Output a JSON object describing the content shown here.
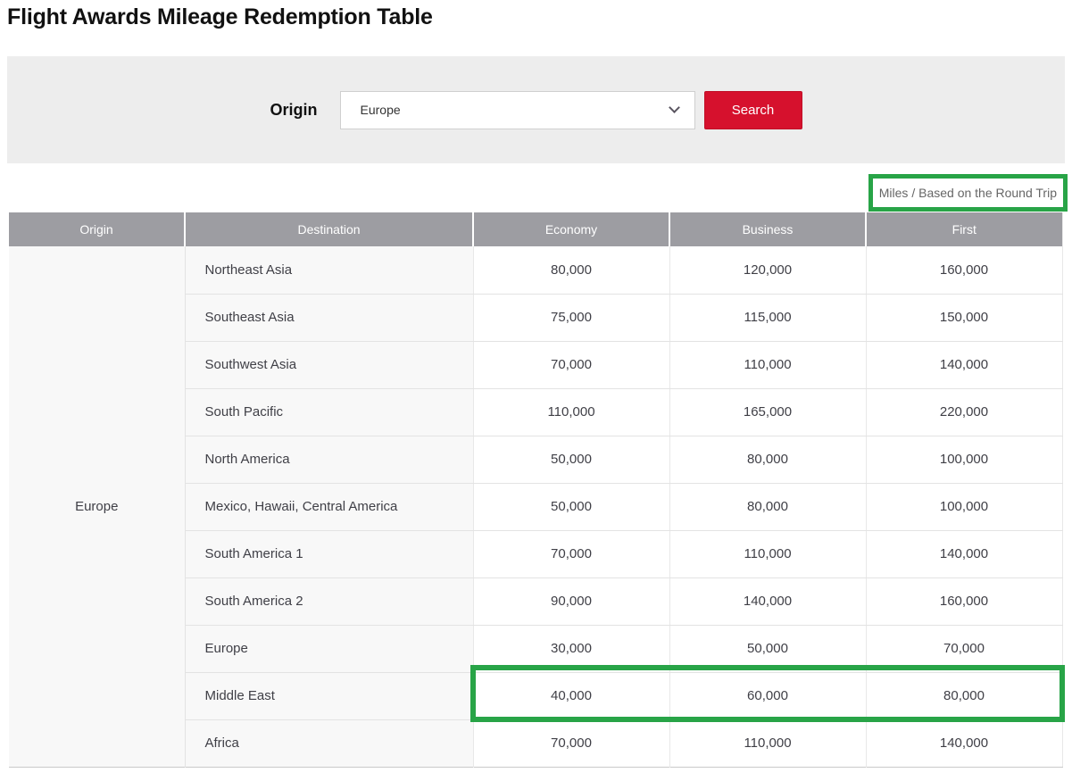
{
  "page": {
    "title": "Flight Awards Mileage Redemption Table"
  },
  "search": {
    "origin_label": "Origin",
    "origin_value": "Europe",
    "search_button_label": "Search"
  },
  "note": {
    "text": "Miles / Based on the Round Trip"
  },
  "table": {
    "columns": [
      "Origin",
      "Destination",
      "Economy",
      "Business",
      "First"
    ],
    "origin": "Europe",
    "rows": [
      {
        "destination": "Northeast Asia",
        "economy": "80,000",
        "business": "120,000",
        "first": "160,000"
      },
      {
        "destination": "Southeast Asia",
        "economy": "75,000",
        "business": "115,000",
        "first": "150,000"
      },
      {
        "destination": "Southwest Asia",
        "economy": "70,000",
        "business": "110,000",
        "first": "140,000"
      },
      {
        "destination": "South Pacific",
        "economy": "110,000",
        "business": "165,000",
        "first": "220,000"
      },
      {
        "destination": "North America",
        "economy": "50,000",
        "business": "80,000",
        "first": "100,000"
      },
      {
        "destination": "Mexico, Hawaii, Central America",
        "economy": "50,000",
        "business": "80,000",
        "first": "100,000"
      },
      {
        "destination": "South America 1",
        "economy": "70,000",
        "business": "110,000",
        "first": "140,000"
      },
      {
        "destination": "South America 2",
        "economy": "90,000",
        "business": "140,000",
        "first": "160,000"
      },
      {
        "destination": "Europe",
        "economy": "30,000",
        "business": "50,000",
        "first": "70,000"
      },
      {
        "destination": "Middle East",
        "economy": "40,000",
        "business": "60,000",
        "first": "80,000"
      },
      {
        "destination": "Africa",
        "economy": "70,000",
        "business": "110,000",
        "first": "140,000"
      }
    ],
    "highlighted_row": "Middle East"
  },
  "colors": {
    "accent_red": "#d6112d",
    "highlight_green": "#28a447",
    "header_gray": "#9d9da2",
    "panel_gray": "#ededed"
  }
}
